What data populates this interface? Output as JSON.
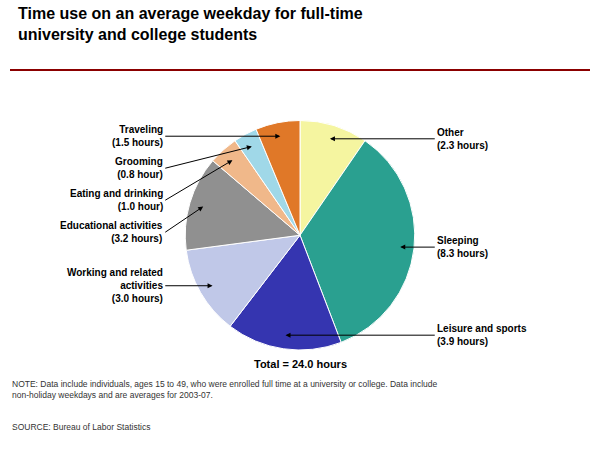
{
  "chart_data": {
    "type": "pie",
    "title": "Time use on an average weekday for full-time\nuniversity and college students",
    "categories": [
      "Other",
      "Sleeping",
      "Leisure and sports",
      "Working and related\nactivities",
      "Educational activities",
      "Eating and drinking",
      "Grooming",
      "Traveling"
    ],
    "values": [
      2.3,
      8.3,
      3.9,
      3.0,
      3.2,
      1.0,
      0.8,
      1.5
    ],
    "value_labels": [
      "Other\n(2.3 hours)",
      "Sleeping\n(8.3 hours)",
      "Leisure and sports\n(3.9 hours)",
      "Working and related\nactivities\n(3.0 hours)",
      "Educational activities\n(3.2 hours)",
      "Eating and drinking\n(1.0 hour)",
      "Grooming\n(0.8 hour)",
      "Traveling\n(1.5 hours)"
    ],
    "colors": [
      "#f5f5a0",
      "#2aA090",
      "#3535b0",
      "#c0c8e8",
      "#909090",
      "#f0b88a",
      "#a0d8e8",
      "#e07828"
    ],
    "data_labels": true,
    "annotations": [
      "Total = 24.0 hours",
      "NOTE: Data include individuals, ages 15 to 49, who were enrolled full time at a university or college. Data include\nnon-holiday weekdays and are averages for 2003-07.",
      "SOURCE: Bureau of Labor Statistics"
    ]
  }
}
